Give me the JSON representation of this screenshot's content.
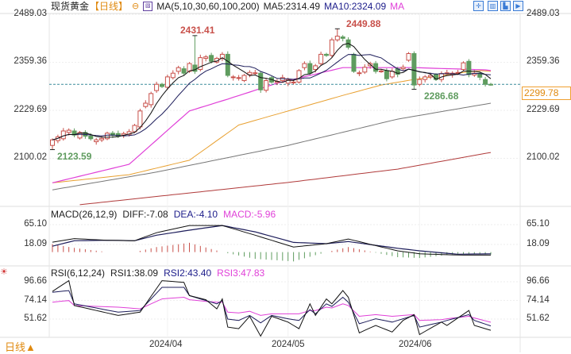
{
  "header": {
    "instrument": "现货黄金",
    "period": "【日线】",
    "ma_label": "MA(5,10,30,60,100,200)",
    "ma5": "MA5:2314.49",
    "ma10": "MA10:2324.09",
    "ma_more": "MA"
  },
  "toolbar_icons": [
    "crosshair-icon",
    "chart-layout-icon",
    "chart-export-icon",
    "chart-next-icon"
  ],
  "price_tag": "2299.78",
  "footer": {
    "period_toggle": "日线▲"
  },
  "colors": {
    "up": "#c8504a",
    "down": "#5f9c5f",
    "ma5": "#111111",
    "ma10": "#1c1c5a",
    "ma30": "#e040d8",
    "ma60": "#e8a030",
    "ma100": "#777777",
    "ma200": "#b03a3a",
    "last_price_line": "#3c8c9c",
    "tag": "#e08a10"
  },
  "chart_data": [
    {
      "type": "candlestick",
      "title": "现货黄金 日线",
      "y_ticks": [
        "2489.03",
        "2359.36",
        "2229.69",
        "2100.02"
      ],
      "y_tick_values": [
        2489.03,
        2359.36,
        2229.69,
        2100.02
      ],
      "x_ticks": [
        {
          "label": "2024/04",
          "index": 21
        },
        {
          "label": "2024/05",
          "index": 43
        },
        {
          "label": "2024/06",
          "index": 67
        }
      ],
      "open": [
        2135,
        2148,
        2153,
        2170,
        2174,
        2155,
        2170,
        2160,
        2145,
        2150,
        2153,
        2168,
        2167,
        2163,
        2165,
        2172,
        2185,
        2240,
        2245,
        2283,
        2300,
        2292,
        2318,
        2335,
        2342,
        2335,
        2352,
        2340,
        2370,
        2378,
        2360,
        2370,
        2381,
        2318,
        2316,
        2310,
        2326,
        2330,
        2330,
        2284,
        2318,
        2305,
        2310,
        2303,
        2305,
        2306,
        2345,
        2356,
        2340,
        2356,
        2381,
        2378,
        2420,
        2428,
        2420,
        2381,
        2329,
        2333,
        2350,
        2356,
        2335,
        2337,
        2320,
        2342,
        2342,
        2365,
        2383,
        2300,
        2313,
        2320,
        2326,
        2313,
        2330,
        2326,
        2331,
        2340,
        2362,
        2325,
        2330,
        2313,
        2300
      ],
      "close": [
        2150,
        2158,
        2174,
        2176,
        2163,
        2170,
        2160,
        2153,
        2150,
        2154,
        2168,
        2162,
        2160,
        2167,
        2172,
        2189,
        2228,
        2249,
        2275,
        2300,
        2294,
        2320,
        2330,
        2345,
        2330,
        2356,
        2335,
        2372,
        2374,
        2362,
        2370,
        2381,
        2324,
        2320,
        2318,
        2324,
        2332,
        2331,
        2285,
        2310,
        2306,
        2308,
        2318,
        2313,
        2306,
        2337,
        2356,
        2330,
        2350,
        2381,
        2378,
        2420,
        2430,
        2424,
        2400,
        2335,
        2331,
        2346,
        2356,
        2335,
        2336,
        2315,
        2335,
        2327,
        2346,
        2383,
        2298,
        2313,
        2320,
        2324,
        2313,
        2329,
        2331,
        2330,
        2332,
        2358,
        2326,
        2330,
        2319,
        2300,
        2299.78
      ],
      "annotations": [
        {
          "label": "2431.41",
          "index": 26,
          "value": 2431.41,
          "kind": "high"
        },
        {
          "label": "2449.88",
          "index": 52,
          "value": 2449.88,
          "kind": "high"
        },
        {
          "label": "2123.59",
          "index": 0,
          "value": 2123.59,
          "kind": "low"
        },
        {
          "label": "2286.68",
          "index": 66,
          "value": 2286.68,
          "kind": "low"
        }
      ],
      "last_price": 2299.78,
      "ma": {
        "ma30": [
          [
            0,
            2034
          ],
          [
            14,
            2084
          ],
          [
            25,
            2228
          ],
          [
            32,
            2260
          ],
          [
            41,
            2303
          ],
          [
            53,
            2345
          ],
          [
            66,
            2345
          ],
          [
            79,
            2339
          ],
          [
            80,
            2337
          ]
        ],
        "ma60": [
          [
            0,
            2034
          ],
          [
            14,
            2056
          ],
          [
            25,
            2095
          ],
          [
            34,
            2190
          ],
          [
            53,
            2270
          ],
          [
            60,
            2298
          ],
          [
            66,
            2313
          ],
          [
            74,
            2330
          ],
          [
            78,
            2337
          ],
          [
            80,
            2335
          ]
        ],
        "ma100": [
          [
            0,
            2015
          ],
          [
            19,
            2063
          ],
          [
            43,
            2135
          ],
          [
            63,
            2206
          ],
          [
            80,
            2249
          ]
        ],
        "ma200": [
          [
            5,
            1975
          ],
          [
            43,
            2035
          ],
          [
            63,
            2071
          ],
          [
            80,
            2116
          ]
        ]
      }
    },
    {
      "type": "line",
      "title": "MACD(26,12,9)",
      "legend": [
        "DIFF:-7.08",
        "DEA:-4.10",
        "MACD:-5.96"
      ],
      "y_ticks": [
        "65.10",
        "18.09"
      ],
      "y_tick_values": [
        65.1,
        18.09
      ],
      "diff": [
        [
          0,
          23.5
        ],
        [
          4,
          32
        ],
        [
          10,
          28
        ],
        [
          15,
          27
        ],
        [
          19,
          46
        ],
        [
          25,
          63
        ],
        [
          31,
          63
        ],
        [
          37,
          40
        ],
        [
          44,
          12
        ],
        [
          50,
          20
        ],
        [
          54,
          31
        ],
        [
          63,
          3
        ],
        [
          67,
          -4
        ],
        [
          74,
          -7
        ],
        [
          80,
          -7.08
        ]
      ],
      "dea": [
        [
          0,
          14
        ],
        [
          4,
          27
        ],
        [
          10,
          28
        ],
        [
          15,
          27
        ],
        [
          19,
          40
        ],
        [
          25,
          52
        ],
        [
          31,
          63
        ],
        [
          37,
          48
        ],
        [
          44,
          23
        ],
        [
          50,
          20
        ],
        [
          54,
          25
        ],
        [
          63,
          9
        ],
        [
          67,
          3
        ],
        [
          74,
          -5
        ],
        [
          80,
          -4.1
        ]
      ]
    },
    {
      "type": "line",
      "title": "RSI(6,12,24)",
      "legend": [
        "RSI1:38.09",
        "RSI2:43.40",
        "RSI3:47.83"
      ],
      "y_ticks": [
        "96.66",
        "74.14",
        "51.62"
      ],
      "y_tick_values": [
        96.66,
        74.14,
        51.62
      ],
      "rsi1": [
        [
          0,
          85
        ],
        [
          3,
          98
        ],
        [
          4,
          68
        ],
        [
          12,
          56
        ],
        [
          16,
          60
        ],
        [
          20,
          98
        ],
        [
          24,
          96
        ],
        [
          25,
          80
        ],
        [
          28,
          75
        ],
        [
          30,
          64
        ],
        [
          31,
          76
        ],
        [
          32,
          42
        ],
        [
          34,
          40
        ],
        [
          36,
          55
        ],
        [
          38,
          31
        ],
        [
          40,
          55
        ],
        [
          43,
          48
        ],
        [
          45,
          40
        ],
        [
          47,
          70
        ],
        [
          48,
          56
        ],
        [
          50,
          76
        ],
        [
          51,
          70
        ],
        [
          53,
          86
        ],
        [
          54,
          78
        ],
        [
          56,
          35
        ],
        [
          59,
          44
        ],
        [
          62,
          36
        ],
        [
          64,
          50
        ],
        [
          66,
          57
        ],
        [
          67,
          33
        ],
        [
          71,
          48
        ],
        [
          72,
          44
        ],
        [
          76,
          62
        ],
        [
          77,
          44
        ],
        [
          80,
          38.09
        ]
      ],
      "rsi2": [
        [
          0,
          84
        ],
        [
          3,
          86
        ],
        [
          4,
          70
        ],
        [
          12,
          60
        ],
        [
          16,
          62
        ],
        [
          20,
          90
        ],
        [
          24,
          90
        ],
        [
          25,
          80
        ],
        [
          28,
          74
        ],
        [
          30,
          70
        ],
        [
          31,
          74
        ],
        [
          32,
          51.6
        ],
        [
          34,
          50
        ],
        [
          36,
          56
        ],
        [
          38,
          47
        ],
        [
          40,
          56
        ],
        [
          43,
          52
        ],
        [
          45,
          50
        ],
        [
          47,
          63
        ],
        [
          48,
          58
        ],
        [
          50,
          70
        ],
        [
          51,
          67
        ],
        [
          53,
          78
        ],
        [
          54,
          72
        ],
        [
          56,
          46
        ],
        [
          59,
          52
        ],
        [
          62,
          48
        ],
        [
          64,
          52
        ],
        [
          66,
          56
        ],
        [
          67,
          42
        ],
        [
          71,
          48
        ],
        [
          72,
          50
        ],
        [
          76,
          57
        ],
        [
          77,
          50
        ],
        [
          80,
          43.4
        ]
      ],
      "rsi3": [
        [
          0,
          72
        ],
        [
          3,
          74
        ],
        [
          4,
          68
        ],
        [
          12,
          66
        ],
        [
          16,
          64
        ],
        [
          20,
          76
        ],
        [
          24,
          78
        ],
        [
          25,
          75
        ],
        [
          28,
          73
        ],
        [
          30,
          72
        ],
        [
          31,
          72
        ],
        [
          32,
          60
        ],
        [
          34,
          59
        ],
        [
          36,
          61
        ],
        [
          38,
          56
        ],
        [
          40,
          58
        ],
        [
          43,
          58
        ],
        [
          45,
          58
        ],
        [
          47,
          62
        ],
        [
          48,
          62
        ],
        [
          50,
          66
        ],
        [
          51,
          65
        ],
        [
          53,
          70
        ],
        [
          54,
          68
        ],
        [
          56,
          55
        ],
        [
          59,
          57
        ],
        [
          62,
          55
        ],
        [
          64,
          56
        ],
        [
          66,
          57
        ],
        [
          67,
          50
        ],
        [
          71,
          51
        ],
        [
          72,
          52
        ],
        [
          76,
          55
        ],
        [
          77,
          53
        ],
        [
          80,
          47.83
        ]
      ]
    }
  ]
}
